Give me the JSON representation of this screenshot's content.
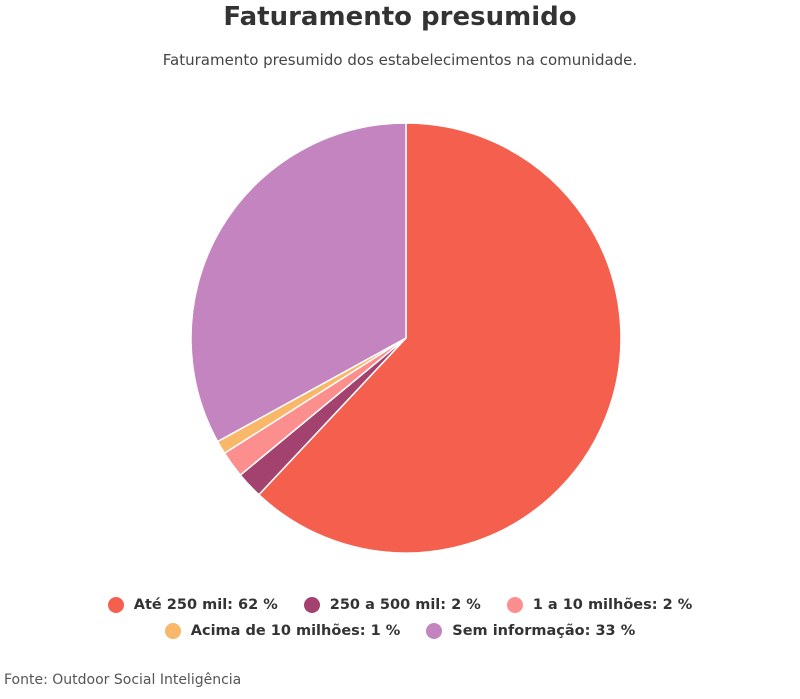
{
  "chart_data": {
    "type": "pie",
    "title": "Faturamento presumido",
    "subtitle": "Faturamento presumido dos estabelecimentos na comunidade.",
    "slices": [
      {
        "label": "Até 250 mil",
        "value": 62,
        "value_label": "62 %",
        "color": "#f45f4e"
      },
      {
        "label": "250 a 500 mil",
        "value": 2,
        "value_label": "2 %",
        "color": "#a4426f"
      },
      {
        "label": "1 a 10 milhões",
        "value": 2,
        "value_label": "2 %",
        "color": "#fc8e8e"
      },
      {
        "label": "Acima de 10 milhões",
        "value": 1,
        "value_label": "1 %",
        "color": "#f9b76a"
      },
      {
        "label": "Sem informação",
        "value": 33,
        "value_label": "33 %",
        "color": "#c484c0"
      }
    ],
    "legend_position": "bottom",
    "source": "Fonte: Outdoor Social Inteligência"
  }
}
